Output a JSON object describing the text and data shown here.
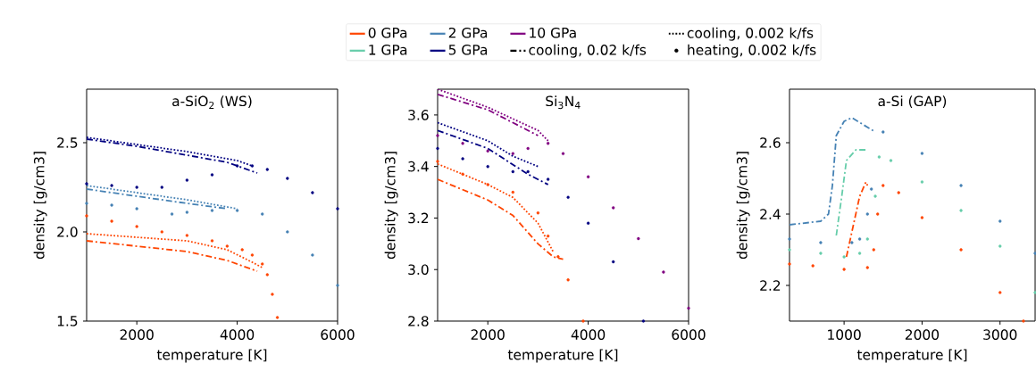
{
  "chart_data": [
    {
      "type": "line",
      "title": "a-SiO$_{2}$ (WS)",
      "xlabel": "temperature [K]",
      "ylabel": "density [g/cm3]",
      "xlim": [
        1000,
        6000
      ],
      "ylim": [
        1.5,
        2.8
      ],
      "xticks": [
        2000,
        4000,
        6000
      ],
      "yticks": [
        1.5,
        {
          "value": 2,
          "label": "2.0"
        },
        2.5
      ],
      "legend": "top",
      "series": [
        {
          "name": "0 GPa",
          "color": "#ff4500",
          "type": "line",
          "line_style": "solid"
        },
        {
          "name": "2 GPa",
          "color": "#4682b4",
          "type": "line",
          "line_style": "solid"
        },
        {
          "name": "10 GPa",
          "color": "#800080",
          "type": "line",
          "line_style": "solid"
        },
        {
          "name": "cooling, 0.002 k/fs",
          "color": "#000000",
          "type": "line",
          "line_style": "dotted"
        },
        {
          "name": "1 GPa",
          "color": "#66cdaa",
          "type": "line",
          "line_style": "solid"
        },
        {
          "name": "5 GPa",
          "color": "#000080",
          "type": "line",
          "line_style": "solid"
        },
        {
          "name": "cooling, 0.02 k/fs",
          "color": "#000000",
          "type": "line",
          "line_style": "dashdot"
        },
        {
          "name": "heating, 0.002 k/fs",
          "color": "#000000",
          "type": "scatter",
          "marker": "circle"
        },
        {
          "color": "#000080",
          "type": "scatter",
          "marker": "circle",
          "x": [
            1000,
            1500,
            2000,
            2500,
            3000,
            3500,
            4000,
            4300,
            4600,
            5000,
            5500,
            6000
          ],
          "values": [
            2.27,
            2.26,
            2.25,
            2.25,
            2.29,
            2.32,
            2.37,
            2.37,
            2.35,
            2.3,
            2.22,
            2.13
          ]
        },
        {
          "color": "#000080",
          "line_style": "dotted",
          "x": [
            1000,
            2000,
            3000,
            4000,
            4300
          ],
          "values": [
            2.53,
            2.49,
            2.45,
            2.4,
            2.37
          ]
        },
        {
          "color": "#000080",
          "line_style": "dashdot",
          "x": [
            1000,
            2000,
            3000,
            3800,
            4400
          ],
          "values": [
            2.52,
            2.48,
            2.43,
            2.39,
            2.33
          ]
        },
        {
          "color": "#4682b4",
          "type": "scatter",
          "marker": "circle",
          "x": [
            1000,
            1500,
            2000,
            2700,
            3000,
            3500,
            4000,
            4500,
            5000,
            5500,
            6000
          ],
          "values": [
            2.16,
            2.15,
            2.13,
            2.1,
            2.11,
            2.12,
            2.12,
            2.1,
            2.0,
            1.87,
            1.7
          ]
        },
        {
          "color": "#4682b4",
          "line_style": "dotted",
          "x": [
            1000,
            2000,
            3000,
            4000
          ],
          "values": [
            2.26,
            2.22,
            2.18,
            2.13
          ]
        },
        {
          "color": "#4682b4",
          "line_style": "dashdot",
          "x": [
            1000,
            2000,
            3000,
            3800
          ],
          "values": [
            2.24,
            2.2,
            2.16,
            2.13
          ]
        },
        {
          "color": "#ff4500",
          "type": "scatter",
          "marker": "circle",
          "x": [
            1000,
            1500,
            2000,
            2500,
            3000,
            3500,
            3800,
            4100,
            4300,
            4500,
            4600,
            4700,
            4800
          ],
          "values": [
            2.09,
            2.06,
            2.03,
            2.0,
            1.98,
            1.95,
            1.92,
            1.9,
            1.87,
            1.82,
            1.76,
            1.65,
            1.52
          ]
        },
        {
          "color": "#ff4500",
          "line_style": "dotted",
          "x": [
            1000,
            2000,
            3000,
            3800,
            4300,
            4500
          ],
          "values": [
            1.99,
            1.97,
            1.95,
            1.9,
            1.83,
            1.8
          ]
        },
        {
          "color": "#ff4500",
          "line_style": "dashdot",
          "x": [
            1000,
            2000,
            3000,
            3800,
            4400
          ],
          "values": [
            1.95,
            1.92,
            1.89,
            1.84,
            1.78
          ]
        }
      ]
    },
    {
      "type": "line",
      "title": "Si$_{3}$N$_{4}$",
      "xlabel": "temperature [K]",
      "ylabel": "density [g/cm3]",
      "xlim": [
        1000,
        6000
      ],
      "ylim": [
        2.8,
        3.7
      ],
      "xticks": [
        2000,
        4000,
        6000
      ],
      "yticks": [
        2.8,
        {
          "value": 3,
          "label": "3.0"
        },
        3.2,
        3.4,
        3.6
      ],
      "series": [
        {
          "color": "#800080",
          "type": "scatter",
          "marker": "circle",
          "x": [
            1000,
            1500,
            2000,
            2500,
            2800,
            3200,
            3500,
            4000,
            4500,
            5000,
            5500,
            6000
          ],
          "values": [
            3.52,
            3.49,
            3.46,
            3.45,
            3.47,
            3.49,
            3.45,
            3.36,
            3.24,
            3.12,
            2.99,
            2.85
          ]
        },
        {
          "color": "#800080",
          "line_style": "dotted",
          "x": [
            1000,
            2000,
            3000,
            3200
          ],
          "values": [
            3.7,
            3.63,
            3.54,
            3.5
          ]
        },
        {
          "color": "#800080",
          "line_style": "dashdot",
          "x": [
            1000,
            2000,
            2500,
            3000
          ],
          "values": [
            3.68,
            3.62,
            3.57,
            3.52
          ]
        },
        {
          "color": "#000080",
          "type": "scatter",
          "marker": "circle",
          "x": [
            1000,
            1500,
            2000,
            2500,
            2800,
            3200,
            3600,
            4000,
            4500,
            5100
          ],
          "values": [
            3.47,
            3.43,
            3.4,
            3.38,
            3.38,
            3.35,
            3.28,
            3.18,
            3.03,
            2.8
          ]
        },
        {
          "color": "#000080",
          "line_style": "dotted",
          "x": [
            1000,
            2000,
            2500,
            3000
          ],
          "values": [
            3.57,
            3.5,
            3.44,
            3.4
          ]
        },
        {
          "color": "#000080",
          "line_style": "dashdot",
          "x": [
            1000,
            2000,
            2400,
            2800,
            3200
          ],
          "values": [
            3.54,
            3.47,
            3.42,
            3.37,
            3.33
          ]
        },
        {
          "color": "#ff4500",
          "type": "scatter",
          "marker": "circle",
          "x": [
            1000,
            1500,
            2000,
            2500,
            3000,
            3200,
            3400,
            3600,
            3900
          ],
          "values": [
            3.42,
            3.37,
            3.33,
            3.3,
            3.22,
            3.13,
            3.05,
            2.96,
            2.8
          ]
        },
        {
          "color": "#ff4500",
          "line_style": "dotted",
          "x": [
            1000,
            2000,
            2500,
            3000,
            3300
          ],
          "values": [
            3.41,
            3.33,
            3.28,
            3.18,
            3.07
          ]
        },
        {
          "color": "#ff4500",
          "line_style": "dashdot",
          "x": [
            1000,
            2000,
            2500,
            3000,
            3300,
            3500
          ],
          "values": [
            3.35,
            3.27,
            3.21,
            3.1,
            3.05,
            3.04
          ]
        }
      ]
    },
    {
      "type": "line",
      "title": "a-Si (GAP)",
      "xlabel": "temperature [K]",
      "ylabel": "density [g/cm3]",
      "xlim": [
        300,
        3450
      ],
      "ylim": [
        2.1,
        2.75
      ],
      "xticks": [
        1000,
        2000,
        3000
      ],
      "yticks": [
        2.2,
        2.4,
        2.6
      ],
      "series": [
        {
          "color": "#ff4500",
          "type": "scatter",
          "marker": "circle",
          "x": [
            300,
            600,
            1000,
            1300,
            1380,
            1430,
            1500,
            1700,
            2000,
            2500,
            3000,
            3300
          ],
          "values": [
            2.26,
            2.255,
            2.245,
            2.25,
            2.3,
            2.4,
            2.48,
            2.46,
            2.39,
            2.3,
            2.18,
            2.1
          ]
        },
        {
          "color": "#ff4500",
          "line_style": "dashdot",
          "x": [
            1030,
            1100,
            1200,
            1280,
            1300
          ],
          "values": [
            2.28,
            2.35,
            2.45,
            2.49,
            2.48
          ]
        },
        {
          "color": "#66cdaa",
          "type": "scatter",
          "marker": "circle",
          "x": [
            300,
            700,
            1000,
            1200,
            1300,
            1400,
            1450,
            1600,
            2000,
            2500,
            3000,
            3450
          ],
          "values": [
            2.3,
            2.29,
            2.28,
            2.29,
            2.33,
            2.45,
            2.56,
            2.55,
            2.49,
            2.41,
            2.31,
            2.18
          ]
        },
        {
          "color": "#66cdaa",
          "line_style": "dashdot",
          "x": [
            900,
            970,
            1030,
            1150,
            1300
          ],
          "values": [
            2.34,
            2.45,
            2.55,
            2.58,
            2.58
          ]
        },
        {
          "color": "#4682b4",
          "type": "scatter",
          "marker": "circle",
          "x": [
            300,
            700,
            1100,
            1200,
            1300,
            1350,
            1500,
            2000,
            2500,
            3000,
            3450
          ],
          "values": [
            2.33,
            2.32,
            2.32,
            2.33,
            2.4,
            2.47,
            2.63,
            2.57,
            2.48,
            2.38,
            2.29
          ]
        },
        {
          "color": "#4682b4",
          "line_style": "dashdot",
          "x": [
            300,
            700,
            800,
            850,
            900,
            1000,
            1100,
            1250,
            1400
          ],
          "values": [
            2.37,
            2.38,
            2.4,
            2.48,
            2.62,
            2.66,
            2.67,
            2.65,
            2.63
          ]
        }
      ]
    }
  ]
}
